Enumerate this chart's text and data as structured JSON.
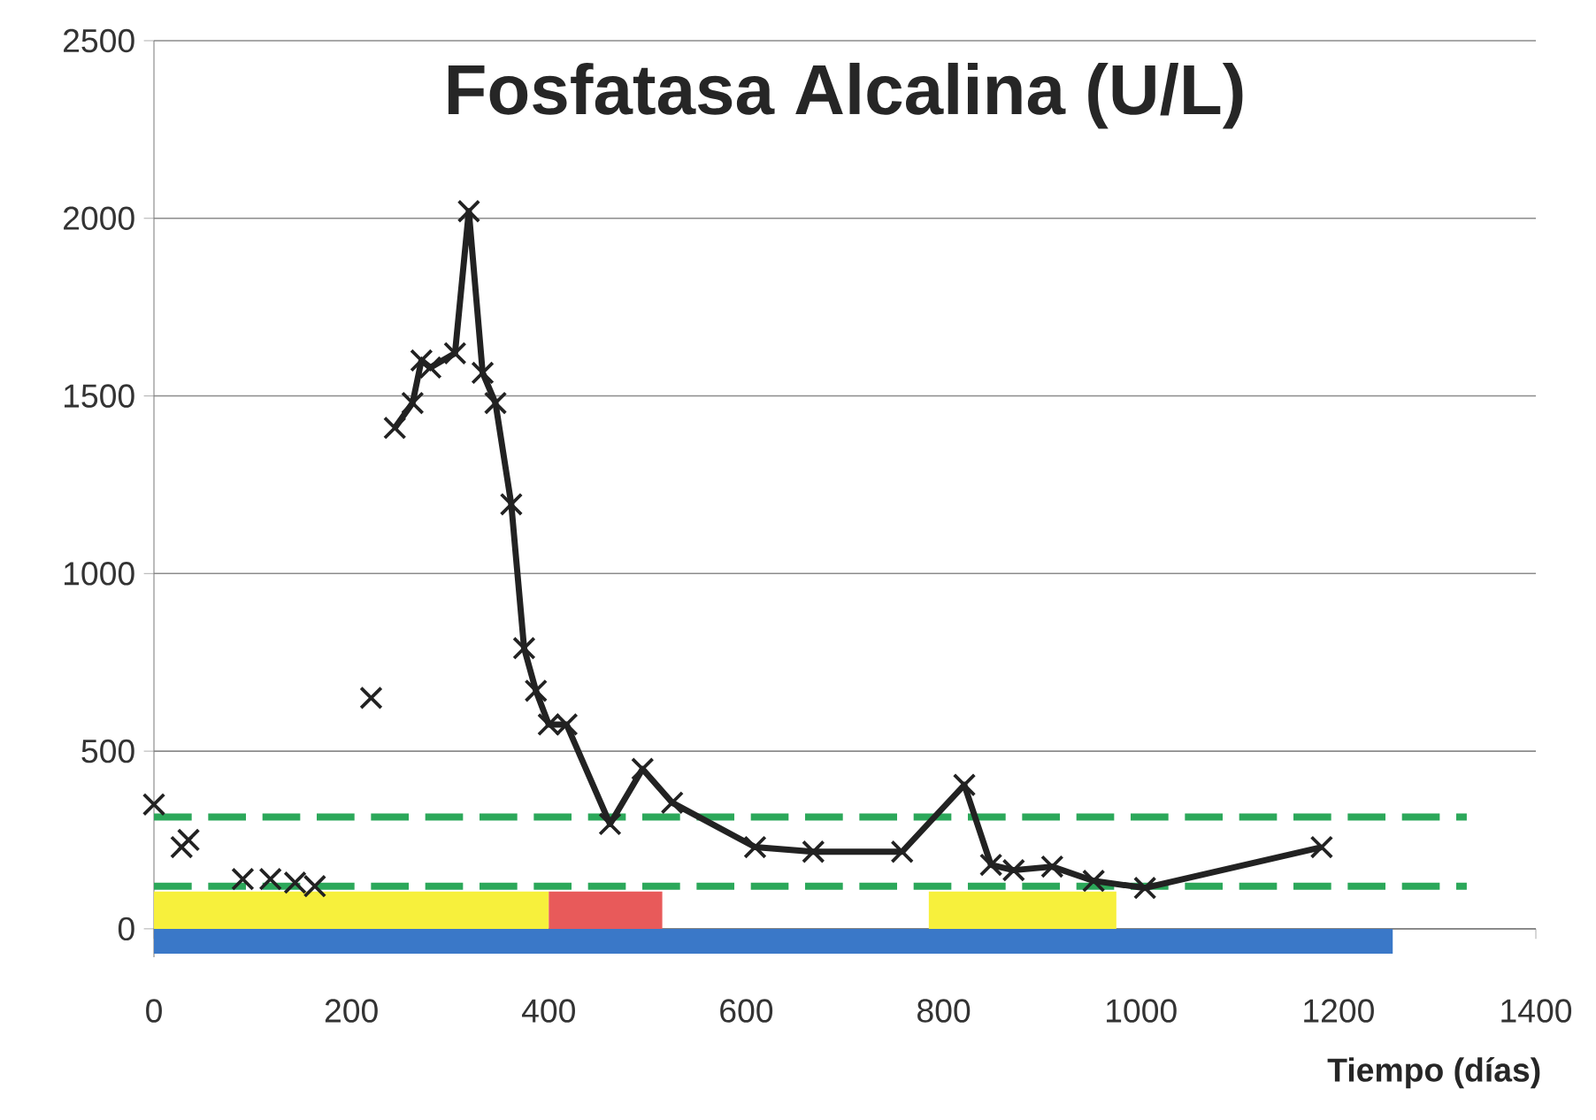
{
  "chart_data": {
    "type": "line",
    "title": "Fosfatasa Alcalina (U/L)",
    "xlabel": "Tiempo (días)",
    "xlim": [
      0,
      1400
    ],
    "xticks": [
      0,
      200,
      400,
      600,
      800,
      1000,
      1200,
      1400
    ],
    "ylim": [
      -80,
      2500
    ],
    "yticks": [
      0,
      500,
      1000,
      1500,
      2000,
      2500
    ],
    "grid": "y",
    "line_style": "solid",
    "series": [
      {
        "type": "area",
        "color": "#3a78c8",
        "x": [
          0,
          1255
        ],
        "values": [
          -70,
          -70
        ]
      },
      {
        "type": "area",
        "color": "#f7f03c",
        "x": [
          0,
          400
        ],
        "values": [
          105,
          105
        ]
      },
      {
        "type": "area",
        "color": "#e85a5a",
        "x": [
          400,
          515
        ],
        "values": [
          105,
          105
        ]
      },
      {
        "type": "area",
        "color": "#f7f03c",
        "x": [
          785,
          975
        ],
        "values": [
          105,
          105
        ]
      },
      {
        "type": "scatter",
        "marker": "cross",
        "color": "#222222",
        "x": [
          0,
          28,
          35,
          90,
          118,
          143,
          163,
          220
        ],
        "values": [
          350,
          230,
          250,
          140,
          140,
          130,
          120,
          650
        ]
      },
      {
        "marker": "cross",
        "color": "#222222",
        "x": [
          244,
          262,
          271,
          280,
          305,
          319,
          333,
          346,
          362,
          375,
          387,
          400,
          418,
          462,
          495,
          525,
          609,
          668,
          758,
          821,
          848,
          871,
          910,
          952,
          1004,
          1183
        ],
        "values": [
          1410,
          1480,
          1600,
          1580,
          1620,
          2020,
          1565,
          1480,
          1195,
          790,
          670,
          575,
          575,
          295,
          450,
          355,
          230,
          217,
          217,
          405,
          180,
          165,
          175,
          135,
          115,
          230
        ]
      }
    ],
    "ref_lines": [
      {
        "axis": "y",
        "value": 315,
        "color": "#2ca85a",
        "line_style": "dashed"
      },
      {
        "axis": "y",
        "value": 120,
        "color": "#2ca85a",
        "line_style": "dashed"
      }
    ]
  }
}
